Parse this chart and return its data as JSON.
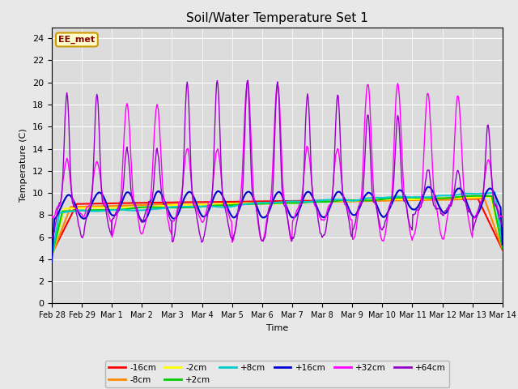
{
  "title": "Soil/Water Temperature Set 1",
  "xlabel": "Time",
  "ylabel": "Temperature (C)",
  "ylim": [
    0,
    25
  ],
  "yticks": [
    0,
    2,
    4,
    6,
    8,
    10,
    12,
    14,
    16,
    18,
    20,
    22,
    24
  ],
  "num_days": 15,
  "legend_entries": [
    "-16cm",
    "-8cm",
    "-2cm",
    "+2cm",
    "+8cm",
    "+16cm",
    "+32cm",
    "+64cm"
  ],
  "legend_colors": [
    "#ff0000",
    "#ff8800",
    "#ffff00",
    "#00cc00",
    "#00cccc",
    "#0000cc",
    "#ff00ff",
    "#9900cc"
  ],
  "xtick_labels": [
    "Feb 28",
    "Feb 29",
    "Mar 1",
    "Mar 2",
    "Mar 3",
    "Mar 4",
    "Mar 5",
    "Mar 6",
    "Mar 7",
    "Mar 8",
    "Mar 9",
    "Mar 10",
    "Mar 11",
    "Mar 12",
    "Mar 13",
    "Mar 14"
  ],
  "fig_bg_color": "#e8e8e8",
  "plot_bg_color": "#dcdcdc",
  "grid_color": "#ffffff",
  "annotation_text": "EE_met",
  "annotation_bg": "#ffffcc",
  "annotation_border": "#cc9900",
  "annotation_color": "#880000"
}
